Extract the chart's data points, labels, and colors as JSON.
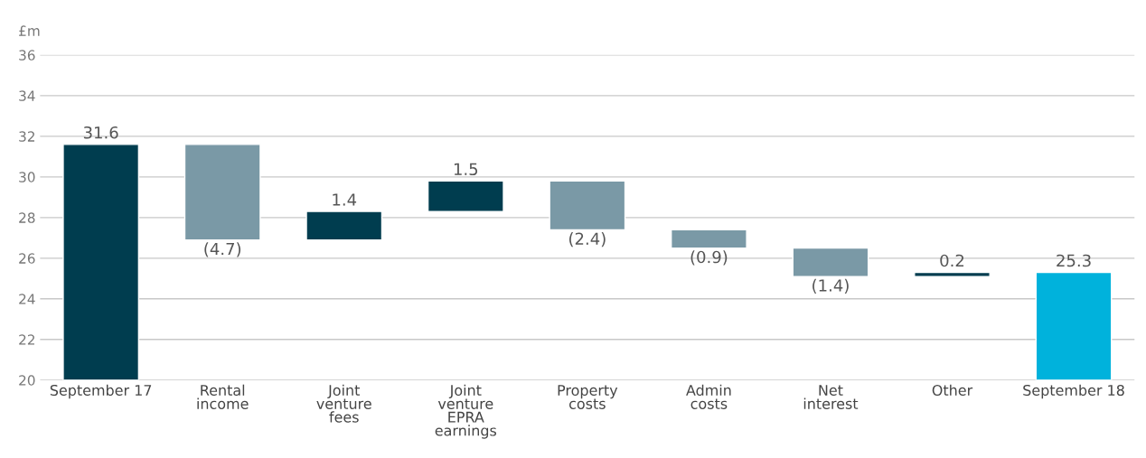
{
  "chart_data": {
    "type": "bar",
    "ylabel": "£m",
    "categories": [
      "September 17",
      "Rental\nincome",
      "Joint\nventure\nfees",
      "Joint\nventure\nEPRA\nearnings",
      "Property\ncosts",
      "Admin\ncosts",
      "Net\ninterest",
      "Other",
      "September 18"
    ],
    "values": [
      31.6,
      -4.7,
      1.4,
      1.5,
      -2.4,
      -0.9,
      -1.4,
      0.2,
      25.3
    ],
    "base": [
      null,
      31.6,
      26.9,
      28.3,
      29.8,
      27.4,
      26.5,
      25.1,
      null
    ],
    "colors": [
      "#003d4f",
      "#7a99a6",
      "#003d4f",
      "#003d4f",
      "#7a99a6",
      "#7a99a6",
      "#7a99a6",
      "#003d4f",
      "#00b2dc"
    ],
    "value_labels": [
      "31.6",
      "(4.7)",
      "1.4",
      "1.5",
      "(2.4)",
      "(0.9)",
      "(1.4)",
      "0.2",
      "25.3"
    ],
    "ylim": [
      20,
      36
    ],
    "yticks": [
      20,
      22,
      24,
      26,
      28,
      30,
      32,
      34,
      36
    ],
    "grid": "y",
    "legend": false
  }
}
